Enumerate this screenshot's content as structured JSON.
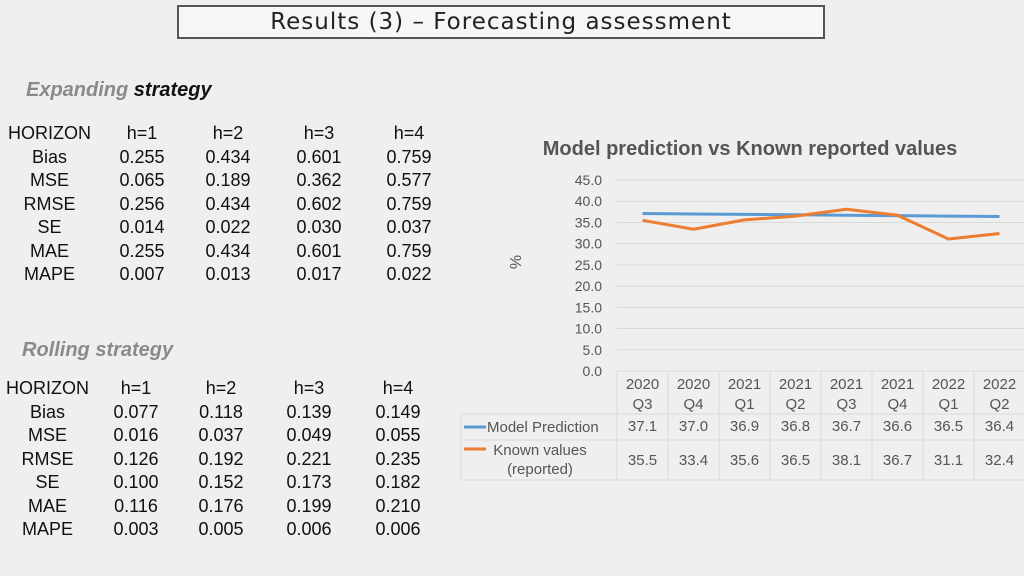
{
  "slide_title": "Results (3) – Forecasting assessment",
  "expanding": {
    "label_part1": "Expanding",
    "label_part2": "strategy",
    "headers": [
      "HORIZON",
      "h=1",
      "h=2",
      "h=3",
      "h=4"
    ],
    "rows": [
      [
        "Bias",
        "0.255",
        "0.434",
        "0.601",
        "0.759"
      ],
      [
        "MSE",
        "0.065",
        "0.189",
        "0.362",
        "0.577"
      ],
      [
        "RMSE",
        "0.256",
        "0.434",
        "0.602",
        "0.759"
      ],
      [
        "SE",
        "0.014",
        "0.022",
        "0.030",
        "0.037"
      ],
      [
        "MAE",
        "0.255",
        "0.434",
        "0.601",
        "0.759"
      ],
      [
        "MAPE",
        "0.007",
        "0.013",
        "0.017",
        "0.022"
      ]
    ]
  },
  "rolling": {
    "label": "Rolling strategy",
    "headers": [
      "HORIZON",
      "h=1",
      "h=2",
      "h=3",
      "h=4"
    ],
    "rows": [
      [
        "Bias",
        "0.077",
        "0.118",
        "0.139",
        "0.149"
      ],
      [
        "MSE",
        "0.016",
        "0.037",
        "0.049",
        "0.055"
      ],
      [
        "RMSE",
        "0.126",
        "0.192",
        "0.221",
        "0.235"
      ],
      [
        "SE",
        "0.100",
        "0.152",
        "0.173",
        "0.182"
      ],
      [
        "MAE",
        "0.116",
        "0.176",
        "0.199",
        "0.210"
      ],
      [
        "MAPE",
        "0.003",
        "0.005",
        "0.006",
        "0.006"
      ]
    ]
  },
  "chart_data": {
    "type": "line",
    "title": "Model prediction vs Known reported values",
    "ylabel": "%",
    "ylim": [
      0,
      45
    ],
    "yticks": [
      "0.0",
      "5.0",
      "10.0",
      "15.0",
      "20.0",
      "25.0",
      "30.0",
      "35.0",
      "40.0",
      "45.0"
    ],
    "categories": [
      [
        "2020",
        "Q3"
      ],
      [
        "2020",
        "Q4"
      ],
      [
        "2021",
        "Q1"
      ],
      [
        "2021",
        "Q2"
      ],
      [
        "2021",
        "Q3"
      ],
      [
        "2021",
        "Q4"
      ],
      [
        "2022",
        "Q1"
      ],
      [
        "2022",
        "Q2"
      ]
    ],
    "series": [
      {
        "name": "Model Prediction",
        "color": "#5b9bd5",
        "values": [
          37.1,
          37.0,
          36.9,
          36.8,
          36.7,
          36.6,
          36.5,
          36.4
        ],
        "labels": [
          "37.1",
          "37.0",
          "36.9",
          "36.8",
          "36.7",
          "36.6",
          "36.5",
          "36.4"
        ]
      },
      {
        "name": "Known values (reported)",
        "name_lines": [
          "Known values",
          "(reported)"
        ],
        "color": "#ed7d31",
        "values": [
          35.5,
          33.4,
          35.6,
          36.5,
          38.1,
          36.7,
          31.1,
          32.4
        ],
        "labels": [
          "35.5",
          "33.4",
          "35.6",
          "36.5",
          "38.1",
          "36.7",
          "31.1",
          "32.4"
        ]
      }
    ],
    "grid": true,
    "legend": "data table"
  }
}
